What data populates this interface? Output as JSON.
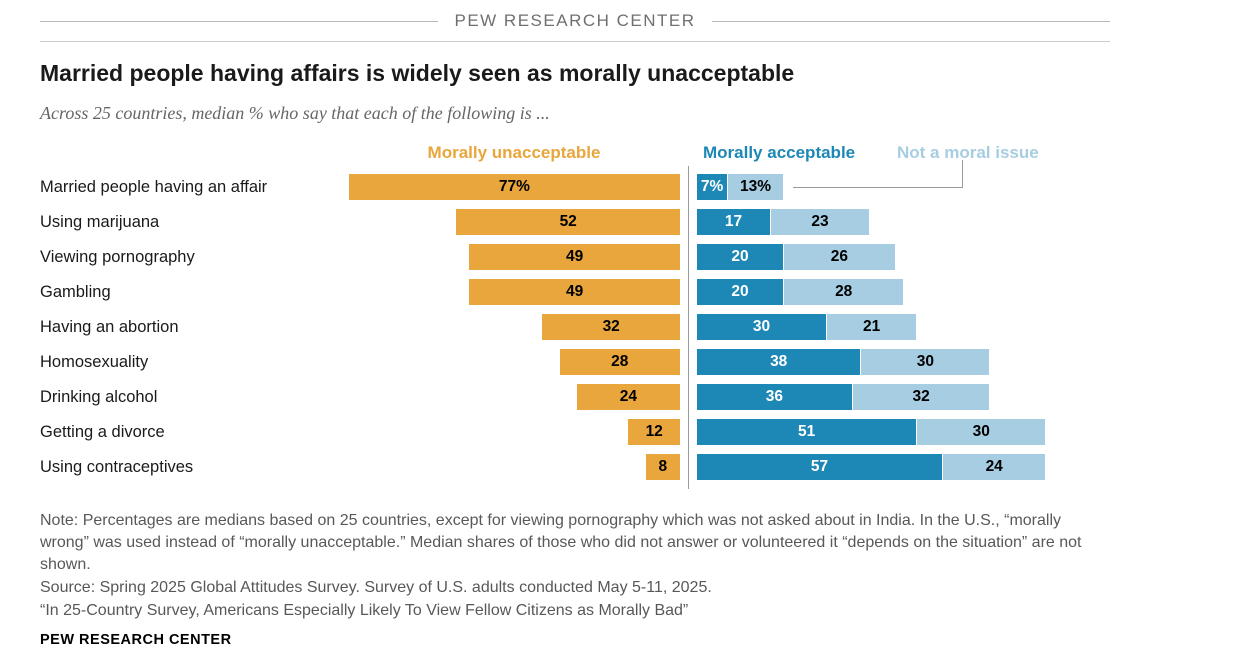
{
  "header": {
    "brand_top": "PEW RESEARCH CENTER",
    "brand_bottom": "PEW RESEARCH CENTER"
  },
  "title": "Married people having affairs is widely seen as morally unacceptable",
  "subtitle": "Across 25 countries, median % who say that each of the following is ...",
  "legend": {
    "unacceptable": "Morally unacceptable",
    "acceptable": "Morally acceptable",
    "not_moral_issue": "Not a moral issue"
  },
  "colors": {
    "orange": "#E9A63C",
    "dark_blue": "#1D87B5",
    "light_blue": "#A7CDE2",
    "divider_gray": "#9A9A9A",
    "note_gray": "#58585A"
  },
  "chart_data": {
    "type": "bar",
    "orientation": "horizontal diverging",
    "unit": "percent",
    "legend_position": "top",
    "series_names": [
      "Morally unacceptable",
      "Morally acceptable",
      "Not a moral issue"
    ],
    "rows": [
      {
        "category": "Married people having an affair",
        "values": [
          77,
          7,
          13
        ],
        "display": [
          "77%",
          "7%",
          "13%"
        ]
      },
      {
        "category": "Using marijuana",
        "values": [
          52,
          17,
          23
        ],
        "display": [
          "52",
          "17",
          "23"
        ]
      },
      {
        "category": "Viewing pornography",
        "values": [
          49,
          20,
          26
        ],
        "display": [
          "49",
          "20",
          "26"
        ]
      },
      {
        "category": "Gambling",
        "values": [
          49,
          20,
          28
        ],
        "display": [
          "49",
          "20",
          "28"
        ]
      },
      {
        "category": "Having an abortion",
        "values": [
          32,
          30,
          21
        ],
        "display": [
          "32",
          "30",
          "21"
        ]
      },
      {
        "category": "Homosexuality",
        "values": [
          28,
          38,
          30
        ],
        "display": [
          "28",
          "38",
          "30"
        ]
      },
      {
        "category": "Drinking alcohol",
        "values": [
          24,
          36,
          32
        ],
        "display": [
          "24",
          "36",
          "32"
        ]
      },
      {
        "category": "Getting a divorce",
        "values": [
          12,
          51,
          30
        ],
        "display": [
          "12",
          "51",
          "30"
        ]
      },
      {
        "category": "Using contraceptives",
        "values": [
          8,
          57,
          24
        ],
        "display": [
          "8",
          "57",
          "24"
        ]
      }
    ]
  },
  "notes": {
    "note": "Note: Percentages are medians based on 25 countries, except for viewing pornography which was not asked about in India. In the U.S., “morally wrong” was used instead of “morally unacceptable.” Median shares of those who did not answer or volunteered it “depends on the situation” are not shown.",
    "source": "Source: Spring 2025 Global Attitudes Survey. Survey of U.S. adults conducted May 5-11, 2025.",
    "report": "“In 25-Country Survey, Americans Especially Likely To View Fellow Citizens as Morally Bad”"
  }
}
